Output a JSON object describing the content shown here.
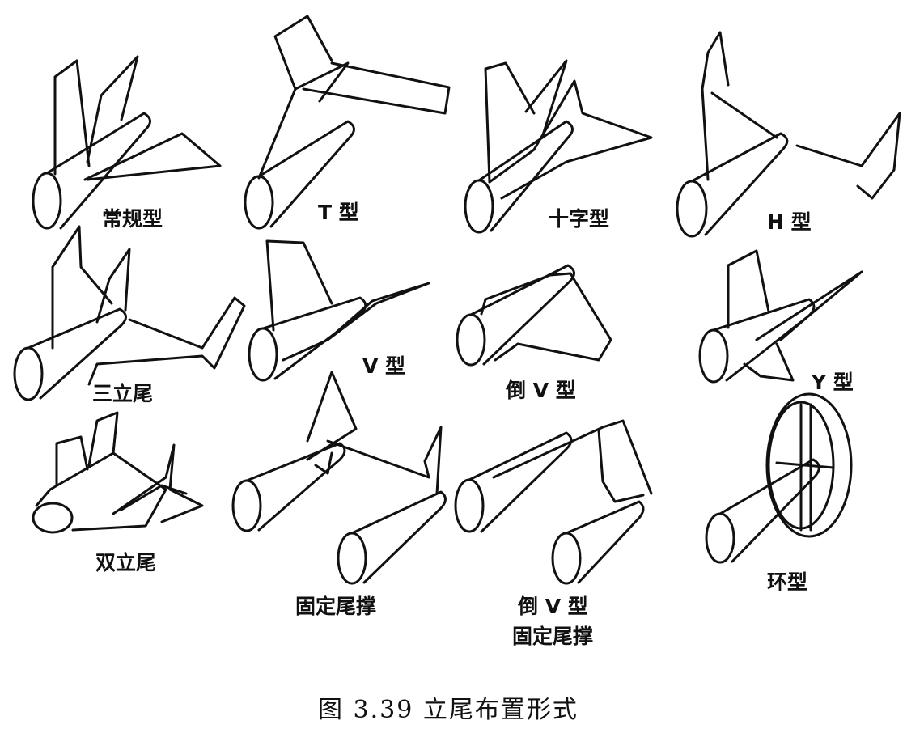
{
  "figure": {
    "caption": "图 3.39   立尾布置形式",
    "panels": [
      {
        "id": "conventional",
        "label": "常规型"
      },
      {
        "id": "t-tail",
        "label": "T 型"
      },
      {
        "id": "cruciform",
        "label": "十字型"
      },
      {
        "id": "h-tail",
        "label": "H 型"
      },
      {
        "id": "triple-fin",
        "label": "三立尾"
      },
      {
        "id": "v-tail",
        "label": "V 型"
      },
      {
        "id": "inverted-v",
        "label": "倒 V 型"
      },
      {
        "id": "y-tail",
        "label": "Y 型"
      },
      {
        "id": "twin-fin",
        "label": "双立尾"
      },
      {
        "id": "twin-boom",
        "label": "固定尾撑"
      },
      {
        "id": "inverted-v-boom",
        "label_line1": "倒 V 型",
        "label_line2": "固定尾撑"
      },
      {
        "id": "ring-tail",
        "label": "环型"
      }
    ]
  }
}
